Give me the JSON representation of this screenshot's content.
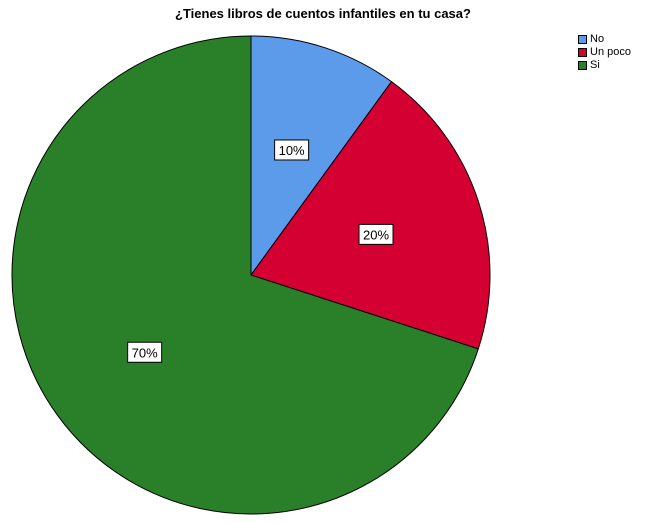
{
  "chart_data": {
    "type": "pie",
    "title": "¿Tienes libros de cuentos infantiles en tu casa?",
    "categories": [
      "No",
      "Un poco",
      "Si"
    ],
    "values": [
      10,
      20,
      70
    ],
    "labels": [
      "10%",
      "20%",
      "70%"
    ],
    "colors": [
      "#5b9bea",
      "#d50032",
      "#2a8029"
    ],
    "legend_position": "top-right"
  }
}
